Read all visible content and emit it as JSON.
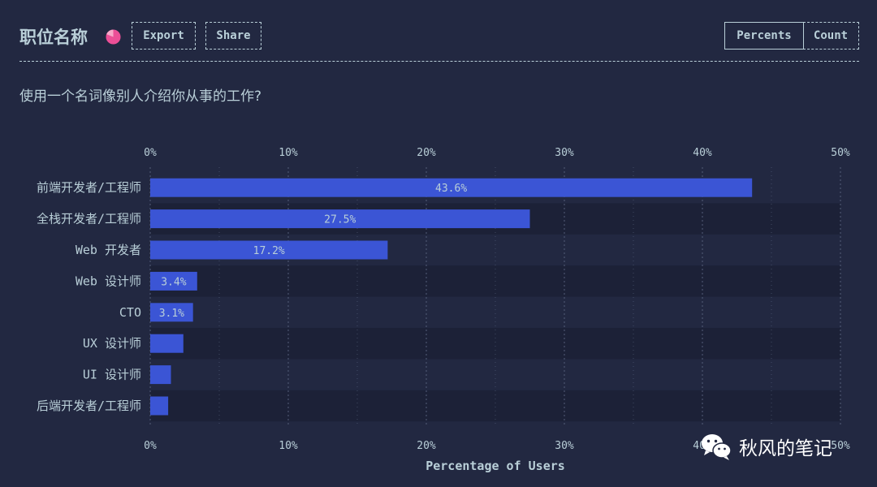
{
  "header": {
    "title": "职位名称",
    "export_label": "Export",
    "share_label": "Share",
    "toggle": {
      "percents_label": "Percents",
      "count_label": "Count",
      "active": "Percents"
    }
  },
  "question": "使用一个名词像别人介绍你从事的工作?",
  "chart_data": {
    "type": "bar",
    "orientation": "horizontal",
    "categories": [
      "前端开发者/工程师",
      "全栈开发者/工程师",
      "Web 开发者",
      "Web 设计师",
      "CTO",
      "UX 设计师",
      "UI 设计师",
      "后端开发者/工程师"
    ],
    "values": [
      43.6,
      27.5,
      17.2,
      3.4,
      3.1,
      2.4,
      1.5,
      1.3
    ],
    "value_labels": [
      "43.6%",
      "27.5%",
      "17.2%",
      "3.4%",
      "3.1%",
      "",
      "",
      ""
    ],
    "xlim": [
      0,
      50
    ],
    "xticks": [
      0,
      10,
      20,
      30,
      40,
      50
    ],
    "xtick_labels": [
      "0%",
      "10%",
      "20%",
      "30%",
      "40%",
      "50%"
    ],
    "xlabel": "Percentage of Users",
    "grid": true,
    "colors": {
      "bar": "#3b55d5",
      "row_alt": "#1c2137",
      "grid": "#5a6480",
      "text": "#b9cfd8",
      "accent": "#ec4f97"
    }
  },
  "watermark": {
    "text": "秋风的笔记",
    "icon": "wechat-icon"
  }
}
